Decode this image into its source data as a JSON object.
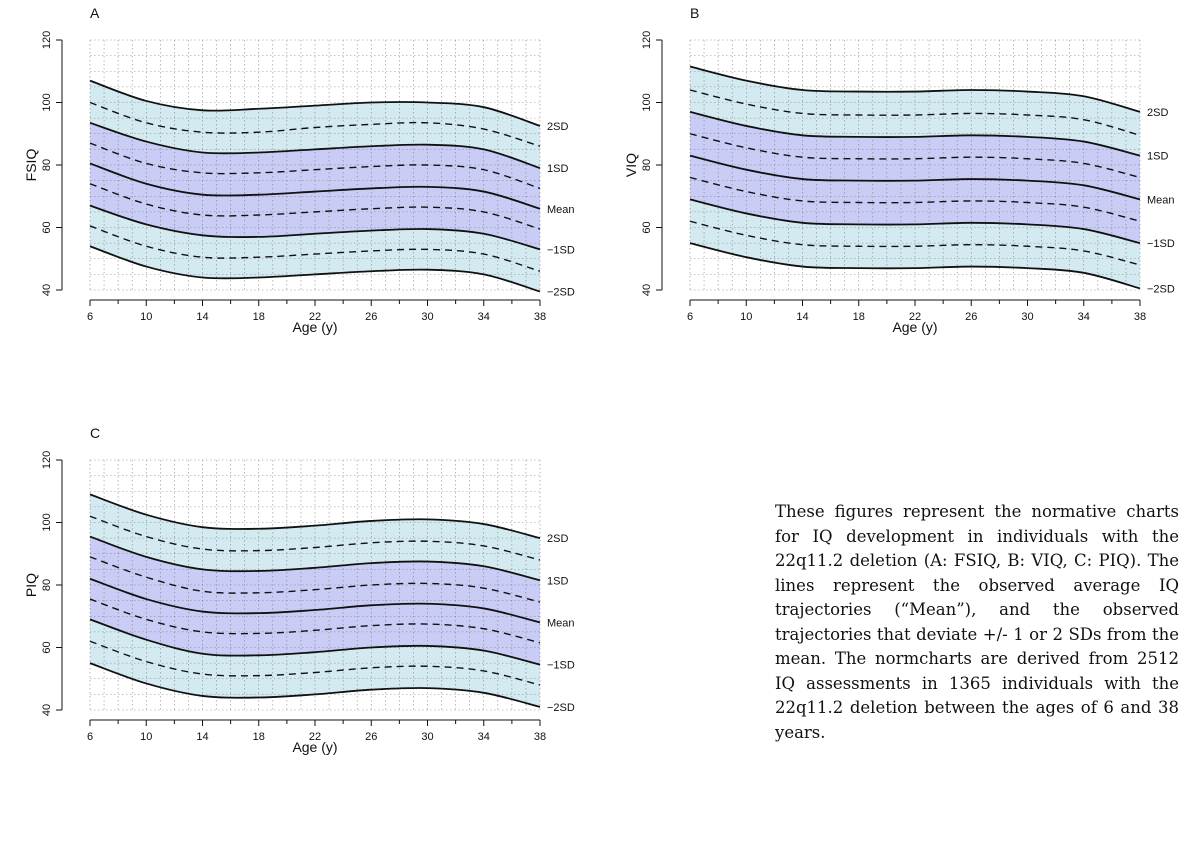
{
  "chart_data": [
    {
      "type": "line",
      "panel_letter": "A",
      "ylabel": "FSIQ",
      "xlabel": "Age (y)",
      "xlim": [
        6,
        38
      ],
      "ylim": [
        40,
        120
      ],
      "xticks": [
        6,
        10,
        14,
        18,
        22,
        26,
        30,
        34,
        38
      ],
      "yticks": [
        40,
        60,
        80,
        100,
        120
      ],
      "grid": true,
      "x": [
        6,
        10,
        14,
        18,
        22,
        26,
        30,
        34,
        38
      ],
      "series": [
        {
          "name": "2SD",
          "style": "solid",
          "values": [
            107,
            100.5,
            97.5,
            98,
            99,
            100,
            100,
            98.5,
            92.5
          ]
        },
        {
          "name": "",
          "style": "dashed",
          "values": [
            100,
            93.5,
            90.5,
            90.5,
            92,
            93,
            93.5,
            91.5,
            86
          ]
        },
        {
          "name": "1SD",
          "style": "solid",
          "values": [
            93.5,
            87.5,
            84,
            84,
            85,
            86,
            86.5,
            85,
            79
          ]
        },
        {
          "name": "",
          "style": "dashed",
          "values": [
            87,
            80.5,
            77.5,
            77.5,
            78.5,
            79.5,
            80,
            78.5,
            72.5
          ]
        },
        {
          "name": "Mean",
          "style": "solid",
          "values": [
            80.5,
            74,
            70.5,
            70.5,
            71.5,
            72.5,
            73,
            71.5,
            66
          ]
        },
        {
          "name": "",
          "style": "dashed",
          "values": [
            74,
            67.5,
            64,
            64,
            65,
            66,
            66.5,
            65,
            59.5
          ]
        },
        {
          "name": "-1SD",
          "style": "solid",
          "values": [
            67,
            61,
            57.5,
            57,
            58,
            59,
            59.5,
            58,
            53
          ]
        },
        {
          "name": "",
          "style": "dashed",
          "values": [
            60.5,
            54,
            50.5,
            50.5,
            51.5,
            52.5,
            53,
            51.5,
            46
          ]
        },
        {
          "name": "-2SD",
          "style": "solid",
          "values": [
            54,
            47.5,
            44,
            44,
            45,
            46,
            46.5,
            45,
            39.5
          ]
        }
      ]
    },
    {
      "type": "line",
      "panel_letter": "B",
      "ylabel": "VIQ",
      "xlabel": "Age (y)",
      "xlim": [
        6,
        38
      ],
      "ylim": [
        40,
        120
      ],
      "xticks": [
        6,
        10,
        14,
        18,
        22,
        26,
        30,
        34,
        38
      ],
      "yticks": [
        40,
        60,
        80,
        100,
        120
      ],
      "grid": true,
      "x": [
        6,
        10,
        14,
        18,
        22,
        26,
        30,
        34,
        38
      ],
      "series": [
        {
          "name": "2SD",
          "style": "solid",
          "values": [
            111.5,
            107,
            104,
            103.5,
            103.5,
            104,
            103.5,
            102,
            97
          ]
        },
        {
          "name": "",
          "style": "dashed",
          "values": [
            104,
            99.5,
            96.5,
            96,
            96,
            96.5,
            96,
            94.5,
            89.5
          ]
        },
        {
          "name": "1SD",
          "style": "solid",
          "values": [
            97,
            92.5,
            89.5,
            89,
            89,
            89.5,
            89,
            87.5,
            83
          ]
        },
        {
          "name": "",
          "style": "dashed",
          "values": [
            90,
            85.5,
            82.5,
            82,
            82,
            82.5,
            82,
            80.5,
            76
          ]
        },
        {
          "name": "Mean",
          "style": "solid",
          "values": [
            83,
            78.5,
            75.5,
            75,
            75,
            75.5,
            75,
            73.5,
            69
          ]
        },
        {
          "name": "",
          "style": "dashed",
          "values": [
            76,
            71.5,
            68.5,
            68,
            68,
            68.5,
            68,
            66.5,
            62
          ]
        },
        {
          "name": "-1SD",
          "style": "solid",
          "values": [
            69,
            64.5,
            61.5,
            61,
            61,
            61.5,
            61,
            59.5,
            55
          ]
        },
        {
          "name": "",
          "style": "dashed",
          "values": [
            62,
            57.5,
            54.5,
            54,
            54,
            54.5,
            54,
            52.5,
            48
          ]
        },
        {
          "name": "-2SD",
          "style": "solid",
          "values": [
            55,
            50.5,
            47.5,
            47,
            47,
            47.5,
            47,
            45.5,
            40.5
          ]
        }
      ]
    },
    {
      "type": "line",
      "panel_letter": "C",
      "ylabel": "PIQ",
      "xlabel": "Age (y)",
      "xlim": [
        6,
        38
      ],
      "ylim": [
        40,
        120
      ],
      "xticks": [
        6,
        10,
        14,
        18,
        22,
        26,
        30,
        34,
        38
      ],
      "yticks": [
        40,
        60,
        80,
        100,
        120
      ],
      "grid": true,
      "x": [
        6,
        10,
        14,
        18,
        22,
        26,
        30,
        34,
        38
      ],
      "series": [
        {
          "name": "2SD",
          "style": "solid",
          "values": [
            109,
            102.5,
            98.5,
            98,
            99,
            100.5,
            101,
            99.5,
            95
          ]
        },
        {
          "name": "",
          "style": "dashed",
          "values": [
            102,
            95.5,
            91.5,
            91,
            92,
            93.5,
            94,
            92.5,
            88
          ]
        },
        {
          "name": "1SD",
          "style": "solid",
          "values": [
            95.5,
            89,
            85,
            84.5,
            85.5,
            87,
            87.5,
            86,
            81.5
          ]
        },
        {
          "name": "",
          "style": "dashed",
          "values": [
            89,
            82.5,
            78,
            77.5,
            78.5,
            80,
            80.5,
            79,
            74.5
          ]
        },
        {
          "name": "Mean",
          "style": "solid",
          "values": [
            82,
            75.5,
            71.5,
            71,
            72,
            73.5,
            74,
            72.5,
            68
          ]
        },
        {
          "name": "",
          "style": "dashed",
          "values": [
            75.5,
            69,
            65,
            64.5,
            65.5,
            67,
            67.5,
            66,
            61.5
          ]
        },
        {
          "name": "-1SD",
          "style": "solid",
          "values": [
            69,
            62.5,
            58,
            57.5,
            58.5,
            60,
            60.5,
            59,
            54.5
          ]
        },
        {
          "name": "",
          "style": "dashed",
          "values": [
            62,
            55.5,
            51.5,
            51,
            52,
            53.5,
            54,
            52.5,
            48
          ]
        },
        {
          "name": "-2SD",
          "style": "solid",
          "values": [
            55,
            48.5,
            44.5,
            44,
            45,
            46.5,
            47,
            45.5,
            41
          ]
        }
      ]
    }
  ],
  "colors": {
    "outer_band": "#d3ebf0",
    "inner_band": "#c9cdf5",
    "line": "#111111",
    "grid": "#666666"
  },
  "caption": "These figures represent the normative charts for IQ development in individuals with the 22q11.2 deletion (A: FSIQ, B: VIQ, C: PIQ). The lines represent the observed average IQ trajectories (“Mean”), and the observed trajectories that deviate +/- 1 or 2 SDs from the mean. The normcharts are derived from 2512 IQ assessments in 1365 individuals with the 22q11.2 deletion between the ages of 6 and 38 years."
}
